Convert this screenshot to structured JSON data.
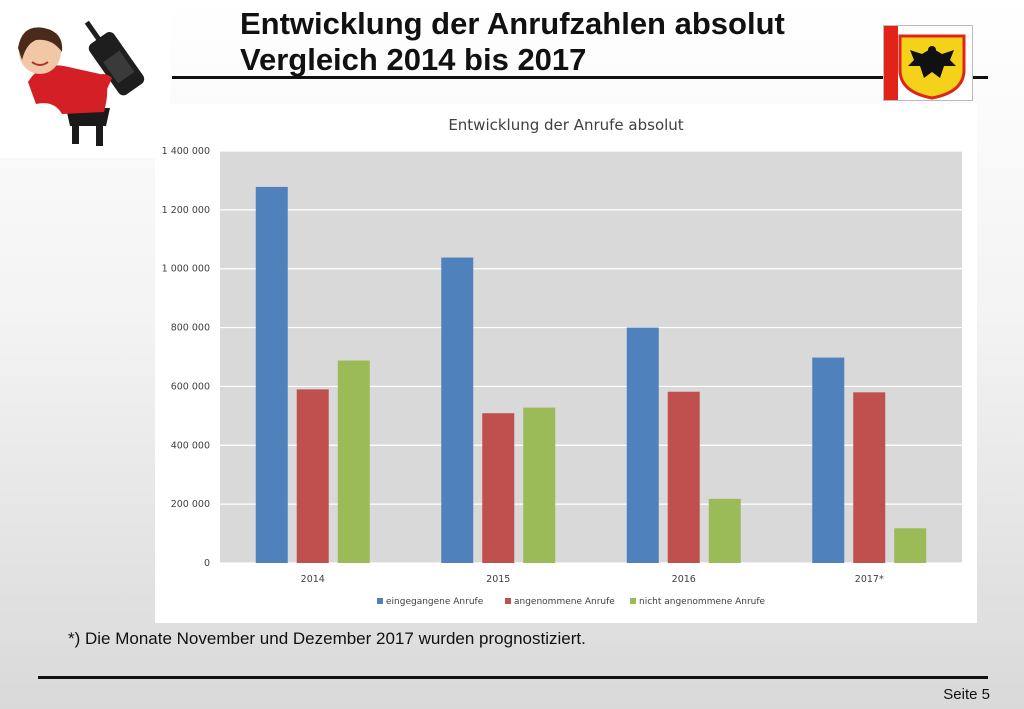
{
  "slide": {
    "title_line1": "Entwicklung der Anrufzahlen absolut",
    "title_line2": "Vergleich 2014 bis 2017",
    "footnote": "*) Die Monate November und Dezember 2017 wurden prognostiziert.",
    "page": "Seite 5"
  },
  "colors": {
    "crest_red": "#e2231a",
    "crest_gold": "#f4d21a",
    "series": [
      "#4f81bd",
      "#c0504d",
      "#9bbb59"
    ]
  },
  "chart_data": {
    "type": "bar",
    "title": "Entwicklung der Anrufe absolut",
    "categories": [
      "2014",
      "2015",
      "2016",
      "2017*"
    ],
    "series": [
      {
        "name": "eingegangene Anrufe",
        "values": [
          1278000,
          1038000,
          800000,
          698000
        ]
      },
      {
        "name": "angenommene Anrufe",
        "values": [
          590000,
          509000,
          582000,
          580000
        ]
      },
      {
        "name": "nicht angenommene Anrufe",
        "values": [
          688000,
          528000,
          218000,
          118000
        ]
      }
    ],
    "ylim": [
      0,
      1400000
    ],
    "yticks": [
      0,
      200000,
      400000,
      600000,
      800000,
      1000000,
      1200000,
      1400000
    ],
    "ytick_labels": [
      "0",
      "200 000",
      "400 000",
      "600 000",
      "800 000",
      "1 000 000",
      "1 200 000",
      "1 400 000"
    ],
    "xlabel": "",
    "ylabel": "",
    "grid": true,
    "legend_position": "bottom"
  }
}
